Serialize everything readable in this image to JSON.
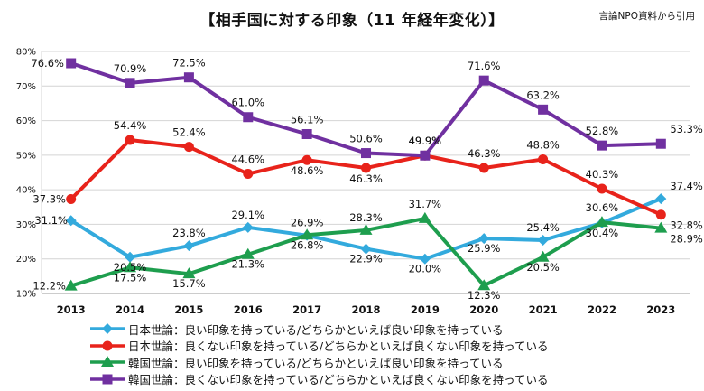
{
  "title": "【相手国に対する印象（11 年経年変化）】",
  "source": "言論NPO資料から引用",
  "chart_data": {
    "type": "line",
    "categories": [
      "2013",
      "2014",
      "2015",
      "2016",
      "2017",
      "2018",
      "2019",
      "2020",
      "2021",
      "2022",
      "2023"
    ],
    "y_ticks": [
      "10%",
      "20%",
      "30%",
      "40%",
      "50%",
      "60%",
      "70%",
      "80%"
    ],
    "ylim": [
      10,
      80
    ],
    "grid": true,
    "legend_position": "bottom",
    "series": [
      {
        "name": "日本世論：良い印象を持っている/どちらかといえば良い印象を持っている",
        "color": "#33AADD",
        "marker": "diamond",
        "values": [
          31.1,
          20.5,
          23.8,
          29.1,
          26.8,
          22.9,
          20.0,
          25.9,
          25.4,
          30.4,
          37.4
        ],
        "labels": [
          "31.1%",
          "20.5%",
          "23.8%",
          "29.1%",
          "26.8%",
          "22.9%",
          "20.0%",
          "25.9%",
          "25.4%",
          "30.4%",
          "37.4%"
        ]
      },
      {
        "name": "日本世論：良くない印象を持っている/どちらかといえば良くない印象を持っている",
        "color": "#E8231B",
        "marker": "circle",
        "values": [
          37.3,
          54.4,
          52.4,
          44.6,
          48.6,
          46.3,
          49.9,
          46.3,
          48.8,
          40.3,
          32.8
        ],
        "labels": [
          "37.3%",
          "54.4%",
          "52.4%",
          "44.6%",
          "48.6%",
          "46.3%",
          "49.9%",
          "46.3%",
          "48.8%",
          "40.3%",
          "32.8%"
        ]
      },
      {
        "name": "韓国世論：良い印象を持っている/どちらかといえば良い印象を持っている",
        "color": "#1E9E4E",
        "marker": "triangle",
        "values": [
          12.2,
          17.5,
          15.7,
          21.3,
          26.9,
          28.3,
          31.7,
          12.3,
          20.5,
          30.6,
          28.9
        ],
        "labels": [
          "12.2%",
          "17.5%",
          "15.7%",
          "21.3%",
          "26.9%",
          "28.3%",
          "31.7%",
          "12.3%",
          "20.5%",
          "30.6%",
          "28.9%"
        ]
      },
      {
        "name": "韓国世論：良くない印象を持っている/どちらかといえば良くない印象を持っている",
        "color": "#7030A0",
        "marker": "square",
        "values": [
          76.6,
          70.9,
          72.5,
          61.0,
          56.1,
          50.6,
          49.9,
          71.6,
          63.2,
          52.8,
          53.3
        ],
        "labels": [
          "76.6%",
          "70.9%",
          "72.5%",
          "61.0%",
          "56.1%",
          "50.6%",
          "49.9%",
          "71.6%",
          "63.2%",
          "52.8%",
          "53.3%"
        ]
      }
    ]
  }
}
